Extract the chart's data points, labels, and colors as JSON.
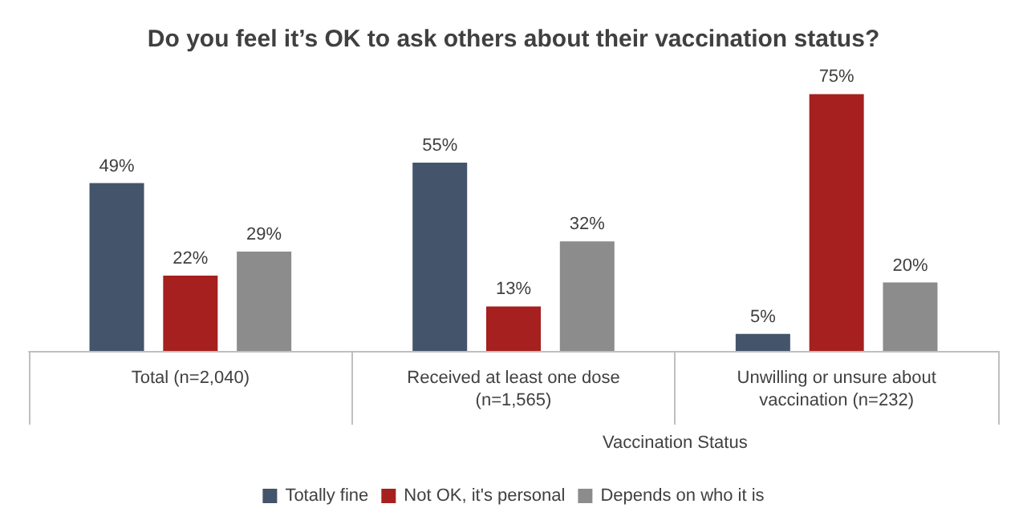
{
  "chart_data": {
    "type": "bar",
    "title": "Do you feel it’s OK to ask others about their vaccination status?",
    "categories": [
      "Total (n=2,040)",
      "Received at least one dose\n(n=1,565)",
      "Unwilling or unsure about\nvaccination (n=232)"
    ],
    "series": [
      {
        "name": "Totally fine",
        "color": "#44546a",
        "values": [
          49,
          55,
          5
        ],
        "value_labels": [
          "49%",
          "55%",
          "5%"
        ]
      },
      {
        "name": "Not OK, it's personal",
        "color": "#a5201e",
        "values": [
          22,
          13,
          75
        ],
        "value_labels": [
          "22%",
          "13%",
          "75%"
        ]
      },
      {
        "name": "Depends on who it is",
        "color": "#8c8c8c",
        "values": [
          29,
          32,
          20
        ],
        "value_labels": [
          "29%",
          "32%",
          "20%"
        ]
      }
    ],
    "legend": "bottom",
    "annotations": [
      "Vaccination Status"
    ]
  }
}
